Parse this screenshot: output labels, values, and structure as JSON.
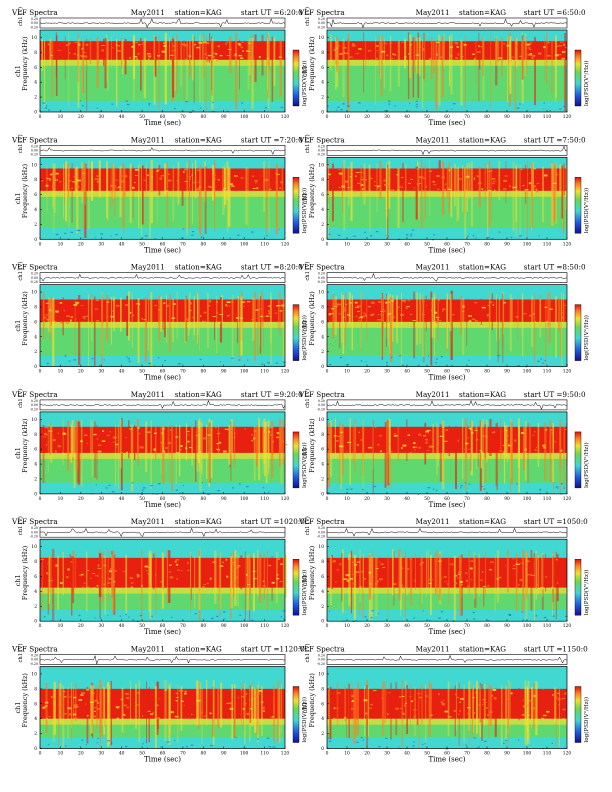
{
  "header_labels": {
    "title": "VLF Spectra",
    "station": "station=KAG",
    "start": "start  UT"
  },
  "axes": {
    "xlabel": "Time (sec)",
    "ylabel": "Frequency (kHz)",
    "channel_label": "ch1",
    "waveform_label": "ch1 (V)",
    "colorbar_label": "log(PSD(V²/Hz))",
    "xticks": [
      "0",
      "10",
      "20",
      "30",
      "40",
      "50",
      "60",
      "70",
      "80",
      "90",
      "100",
      "110",
      "120"
    ],
    "yticks": [
      "0",
      "2",
      "4",
      "6",
      "8",
      "10"
    ],
    "waveform_ticks": [
      "0.20",
      "0.00",
      "-0.20"
    ]
  },
  "colors": {
    "low": "#2060c0",
    "cyan": "#40d8d0",
    "green": "#6ad850",
    "yellow": "#f0e030",
    "orange": "#ff8020",
    "red": "#e82010",
    "wave": "#000000"
  },
  "chart_data": [
    {
      "type": "heatmap",
      "title": "VLF Spectra",
      "date": "May2011",
      "station": "station=KAG",
      "start": "6:20:0",
      "xlabel": "Time (sec)",
      "ylabel": "Frequency (kHz)",
      "xlim": [
        0,
        120
      ],
      "ylim": [
        0,
        11
      ],
      "band_khz": [
        7,
        9.5
      ]
    },
    {
      "type": "heatmap",
      "title": "VLF Spectra",
      "date": "May2011",
      "station": "station=KAG",
      "start": "6:50:0",
      "xlabel": "Time (sec)",
      "ylabel": "Frequency (kHz)",
      "xlim": [
        0,
        120
      ],
      "ylim": [
        0,
        11
      ],
      "band_khz": [
        7,
        9.5
      ]
    },
    {
      "type": "heatmap",
      "title": "VLF Spectra",
      "date": "May2011",
      "station": "station=KAG",
      "start": "7:20:0",
      "xlabel": "Time (sec)",
      "ylabel": "Frequency (kHz)",
      "xlim": [
        0,
        120
      ],
      "ylim": [
        0,
        11
      ],
      "band_khz": [
        6.5,
        9.5
      ]
    },
    {
      "type": "heatmap",
      "title": "VLF Spectra",
      "date": "May2011",
      "station": "station=KAG",
      "start": "7:50:0",
      "xlabel": "Time (sec)",
      "ylabel": "Frequency (kHz)",
      "xlim": [
        0,
        120
      ],
      "ylim": [
        0,
        11
      ],
      "band_khz": [
        6.5,
        9.5
      ]
    },
    {
      "type": "heatmap",
      "title": "VLF Spectra",
      "date": "May2011",
      "station": "station=KAG",
      "start": "8:20:0",
      "xlabel": "Time (sec)",
      "ylabel": "Frequency (kHz)",
      "xlim": [
        0,
        120
      ],
      "ylim": [
        0,
        11
      ],
      "band_khz": [
        6,
        9
      ]
    },
    {
      "type": "heatmap",
      "title": "VLF Spectra",
      "date": "May2011",
      "station": "station=KAG",
      "start": "8:50:0",
      "xlabel": "Time (sec)",
      "ylabel": "Frequency (kHz)",
      "xlim": [
        0,
        120
      ],
      "ylim": [
        0,
        11
      ],
      "band_khz": [
        6,
        9
      ]
    },
    {
      "type": "heatmap",
      "title": "VLF Spectra",
      "date": "May2011",
      "station": "station=KAG",
      "start": "9:20:0",
      "xlabel": "Time (sec)",
      "ylabel": "Frequency (kHz)",
      "xlim": [
        0,
        120
      ],
      "ylim": [
        0,
        11
      ],
      "band_khz": [
        5.5,
        9
      ]
    },
    {
      "type": "heatmap",
      "title": "VLF Spectra",
      "date": "May2011",
      "station": "station=KAG",
      "start": "9:50:0",
      "xlabel": "Time (sec)",
      "ylabel": "Frequency (kHz)",
      "xlim": [
        0,
        120
      ],
      "ylim": [
        0,
        11
      ],
      "band_khz": [
        5.5,
        9
      ]
    },
    {
      "type": "heatmap",
      "title": "VLF Spectra",
      "date": "May2011",
      "station": "station=KAG",
      "start": "1020:0",
      "xlabel": "Time (sec)",
      "ylabel": "Frequency (kHz)",
      "xlim": [
        0,
        120
      ],
      "ylim": [
        0,
        11
      ],
      "band_khz": [
        4.5,
        8.5
      ]
    },
    {
      "type": "heatmap",
      "title": "VLF Spectra",
      "date": "May2011",
      "station": "station=KAG",
      "start": "1050:0",
      "xlabel": "Time (sec)",
      "ylabel": "Frequency (kHz)",
      "xlim": [
        0,
        120
      ],
      "ylim": [
        0,
        11
      ],
      "band_khz": [
        4.5,
        8.5
      ]
    },
    {
      "type": "heatmap",
      "title": "VLF Spectra",
      "date": "May2011",
      "station": "station=KAG",
      "start": "1120:0",
      "xlabel": "Time (sec)",
      "ylabel": "Frequency (kHz)",
      "xlim": [
        0,
        120
      ],
      "ylim": [
        0,
        11
      ],
      "band_khz": [
        4,
        8
      ]
    },
    {
      "type": "heatmap",
      "title": "VLF Spectra",
      "date": "May2011",
      "station": "station=KAG",
      "start": "1150:0",
      "xlabel": "Time (sec)",
      "ylabel": "Frequency (kHz)",
      "xlim": [
        0,
        120
      ],
      "ylim": [
        0,
        11
      ],
      "band_khz": [
        4,
        8
      ]
    }
  ]
}
